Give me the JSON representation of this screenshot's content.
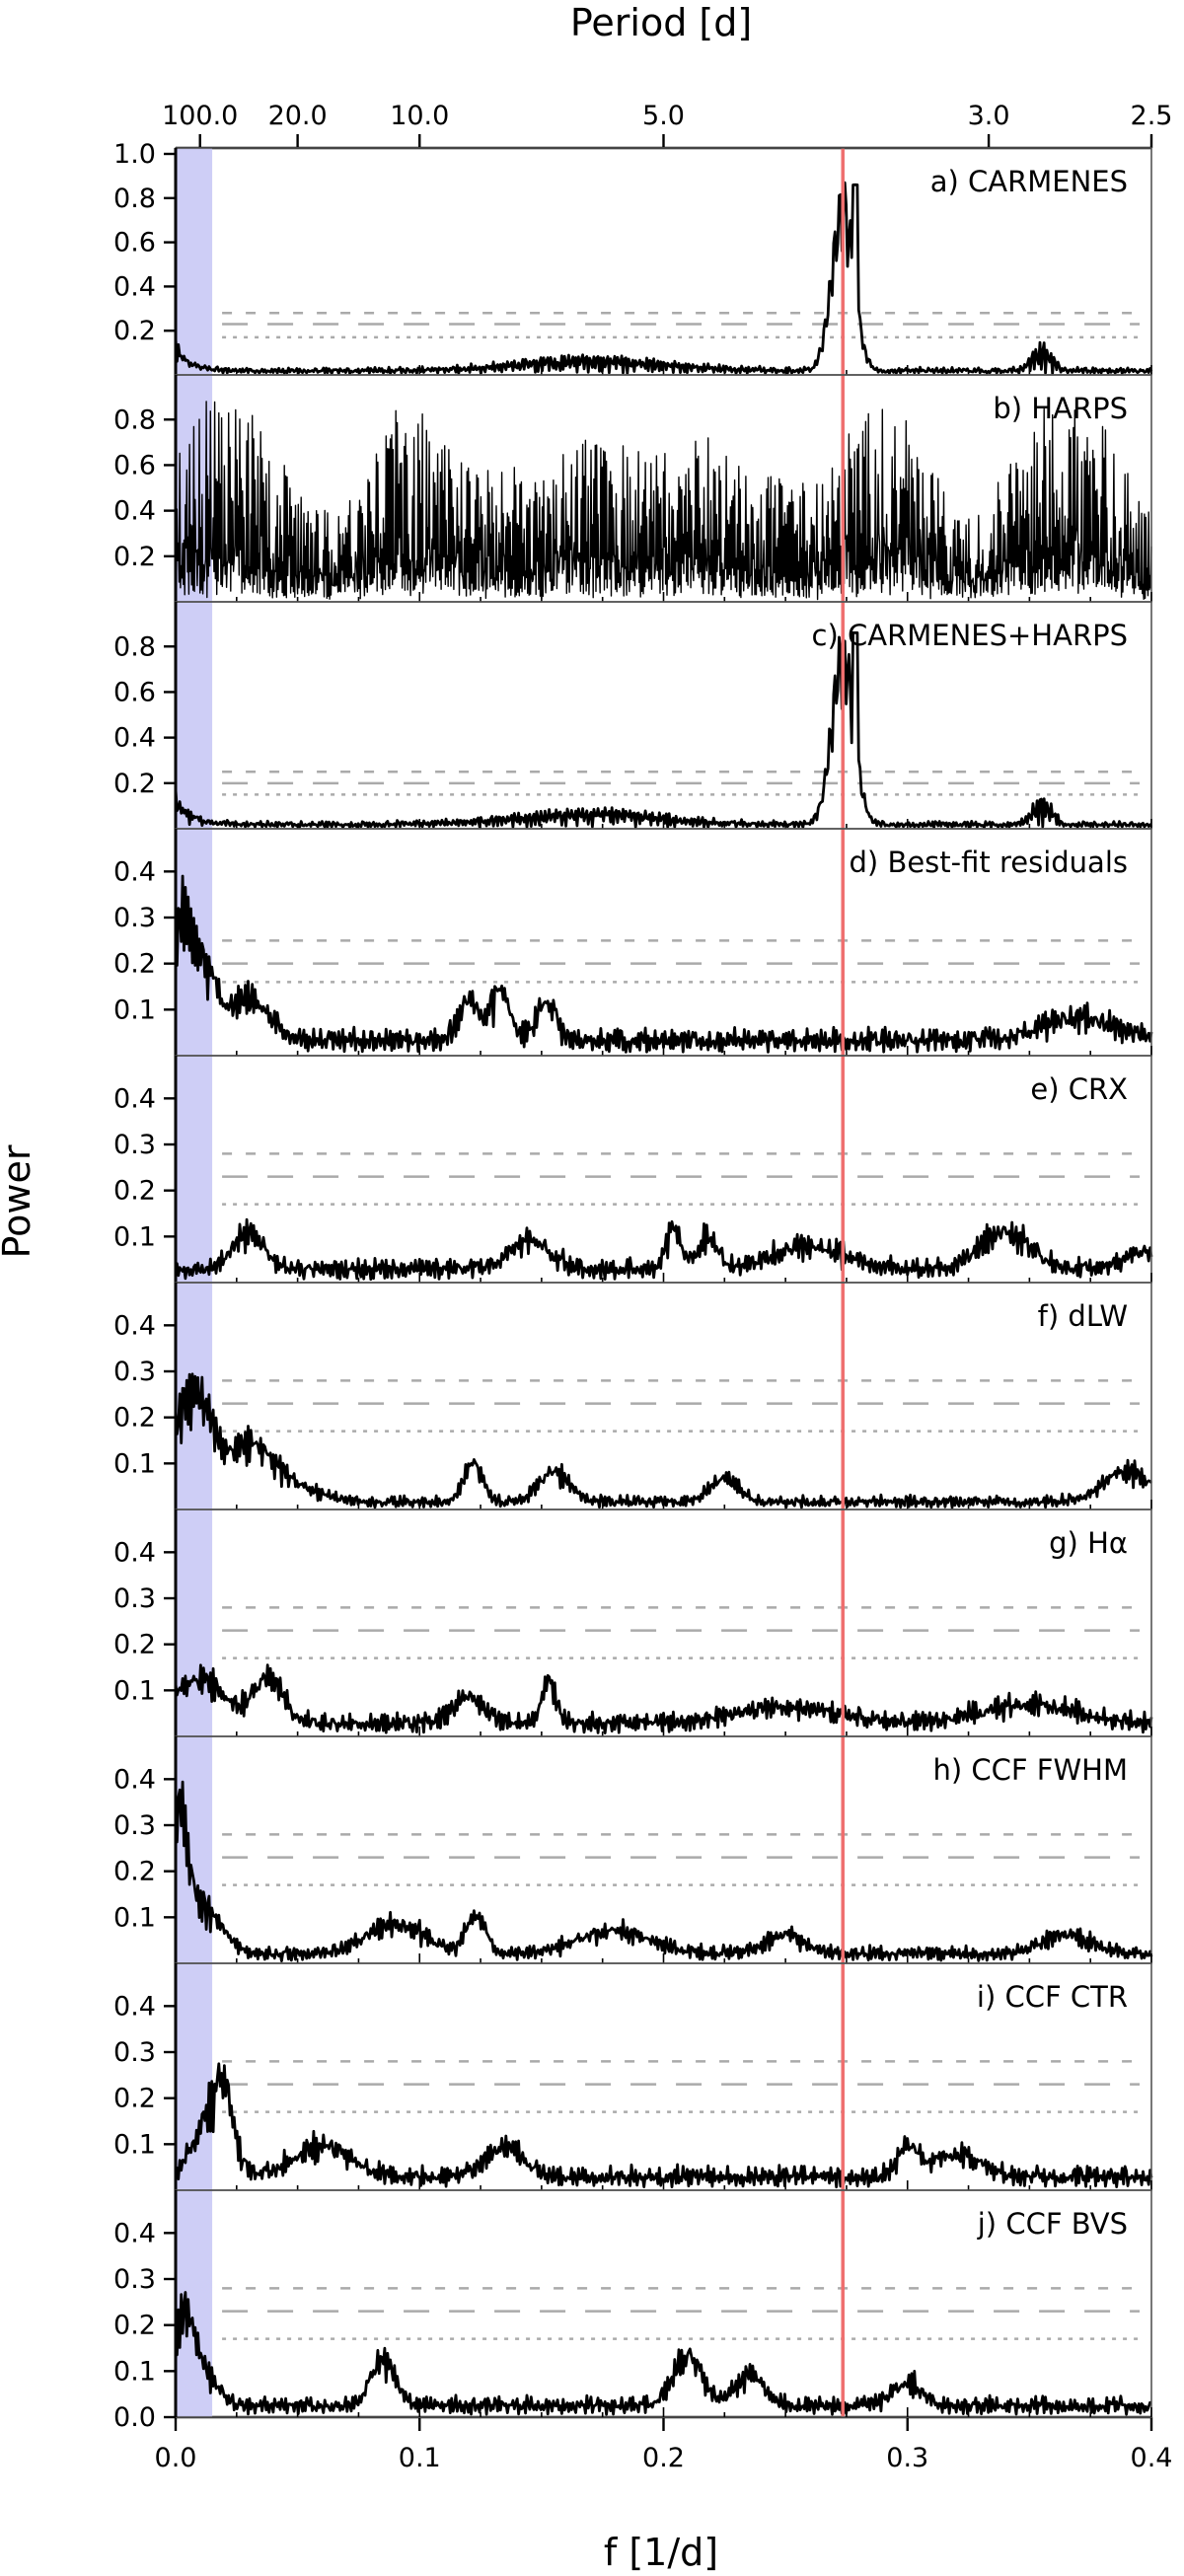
{
  "chart_data": {
    "type": "line",
    "title": "",
    "xlabel": "f [1/d]",
    "ylabel": "Power",
    "top_axis_label": "Period [d]",
    "xlim": [
      0.0,
      0.4
    ],
    "x_ticks": [
      0.0,
      0.1,
      0.2,
      0.3,
      0.4
    ],
    "x_tick_labels": [
      "0.0",
      "0.1",
      "0.2",
      "0.3",
      "0.4"
    ],
    "top_ticks": [
      {
        "label": "100.0",
        "freq": 0.01
      },
      {
        "label": "20.0",
        "freq": 0.05
      },
      {
        "label": "10.0",
        "freq": 0.1
      },
      {
        "label": "5.0",
        "freq": 0.2
      },
      {
        "label": "3.0",
        "freq": 0.3333
      },
      {
        "label": "2.5",
        "freq": 0.4
      }
    ],
    "shaded_band": {
      "from": 0.0,
      "to": 0.015,
      "color": "#c5c5f5"
    },
    "signal_line": {
      "freq": 0.2735,
      "color": "#ef6f6f"
    },
    "colors": {
      "curve": "#000000",
      "fap_lines": "#aaaaaa",
      "axis": "#000000"
    },
    "panels": [
      {
        "label": "a) CARMENES",
        "ylim": [
          0,
          1.0
        ],
        "yticks": [
          0.2,
          0.4,
          0.6,
          0.8,
          1.0
        ],
        "ytick_labels": [
          "0.2",
          "0.4",
          "0.6",
          "0.8",
          "1.0"
        ],
        "fap": [
          0.28,
          0.23,
          0.17
        ],
        "style": "carmenes",
        "noise": 0.02,
        "seed": 11
      },
      {
        "label": "b) HARPS",
        "ylim": [
          0,
          0.97
        ],
        "yticks": [
          0.2,
          0.4,
          0.6,
          0.8
        ],
        "ytick_labels": [
          "0.2",
          "0.4",
          "0.6",
          "0.8"
        ],
        "fap": [],
        "style": "harps",
        "seed": 23
      },
      {
        "label": "c) CARMENES+HARPS",
        "ylim": [
          0,
          0.97
        ],
        "yticks": [
          0.2,
          0.4,
          0.6,
          0.8
        ],
        "ytick_labels": [
          "0.2",
          "0.4",
          "0.6",
          "0.8"
        ],
        "fap": [
          0.25,
          0.2,
          0.15
        ],
        "style": "carmenes",
        "noise": 0.02,
        "seed": 37
      },
      {
        "label": "d) Best-fit residuals",
        "ylim": [
          0,
          0.48
        ],
        "yticks": [
          0.1,
          0.2,
          0.3,
          0.4
        ],
        "ytick_labels": [
          "0.1",
          "0.2",
          "0.3",
          "0.4"
        ],
        "fap": [
          0.25,
          0.2,
          0.16
        ],
        "style": "residuals",
        "noise": 0.04,
        "seed": 41,
        "bumps": [
          {
            "f": 0.003,
            "h": 0.31,
            "w": 0.004
          },
          {
            "f": 0.012,
            "h": 0.17,
            "w": 0.005
          },
          {
            "f": 0.03,
            "h": 0.11,
            "w": 0.008
          },
          {
            "f": 0.12,
            "h": 0.11,
            "w": 0.004
          },
          {
            "f": 0.133,
            "h": 0.13,
            "w": 0.004
          },
          {
            "f": 0.152,
            "h": 0.1,
            "w": 0.004
          },
          {
            "f": 0.37,
            "h": 0.06,
            "w": 0.015
          }
        ]
      },
      {
        "label": "e) CRX",
        "ylim": [
          0,
          0.48
        ],
        "yticks": [
          0.1,
          0.2,
          0.3,
          0.4
        ],
        "ytick_labels": [
          "0.1",
          "0.2",
          "0.3",
          "0.4"
        ],
        "fap": [
          0.28,
          0.23,
          0.17
        ],
        "style": "indicator",
        "noise": 0.035,
        "seed": 53,
        "bumps": [
          {
            "f": 0.03,
            "h": 0.1,
            "w": 0.006
          },
          {
            "f": 0.145,
            "h": 0.08,
            "w": 0.008
          },
          {
            "f": 0.204,
            "h": 0.11,
            "w": 0.003
          },
          {
            "f": 0.218,
            "h": 0.08,
            "w": 0.004
          },
          {
            "f": 0.26,
            "h": 0.06,
            "w": 0.015
          },
          {
            "f": 0.34,
            "h": 0.1,
            "w": 0.01
          },
          {
            "f": 0.395,
            "h": 0.05,
            "w": 0.006
          }
        ]
      },
      {
        "label": "f) dLW",
        "ylim": [
          0,
          0.48
        ],
        "yticks": [
          0.1,
          0.2,
          0.3,
          0.4
        ],
        "ytick_labels": [
          "0.1",
          "0.2",
          "0.3",
          "0.4"
        ],
        "fap": [
          0.28,
          0.23,
          0.17
        ],
        "style": "indicator",
        "noise": 0.02,
        "seed": 67,
        "bumps": [
          {
            "f": 0.003,
            "h": 0.2,
            "w": 0.006
          },
          {
            "f": 0.012,
            "h": 0.18,
            "w": 0.006
          },
          {
            "f": 0.03,
            "h": 0.13,
            "w": 0.008
          },
          {
            "f": 0.045,
            "h": 0.05,
            "w": 0.012
          },
          {
            "f": 0.122,
            "h": 0.1,
            "w": 0.004
          },
          {
            "f": 0.155,
            "h": 0.08,
            "w": 0.006
          },
          {
            "f": 0.225,
            "h": 0.06,
            "w": 0.006
          },
          {
            "f": 0.39,
            "h": 0.08,
            "w": 0.01
          }
        ]
      },
      {
        "label": "g) Hα",
        "ylim": [
          0,
          0.48
        ],
        "yticks": [
          0.1,
          0.2,
          0.3,
          0.4
        ],
        "ytick_labels": [
          "0.1",
          "0.2",
          "0.3",
          "0.4"
        ],
        "fap": [
          0.28,
          0.23,
          0.17
        ],
        "style": "indicator",
        "noise": 0.035,
        "seed": 71,
        "bumps": [
          {
            "f": 0.01,
            "h": 0.12,
            "w": 0.01
          },
          {
            "f": 0.038,
            "h": 0.12,
            "w": 0.006
          },
          {
            "f": 0.12,
            "h": 0.07,
            "w": 0.006
          },
          {
            "f": 0.153,
            "h": 0.11,
            "w": 0.003
          },
          {
            "f": 0.25,
            "h": 0.04,
            "w": 0.02
          },
          {
            "f": 0.35,
            "h": 0.05,
            "w": 0.02
          }
        ]
      },
      {
        "label": "h) CCF FWHM",
        "ylim": [
          0,
          0.48
        ],
        "yticks": [
          0.1,
          0.2,
          0.3,
          0.4
        ],
        "ytick_labels": [
          "0.1",
          "0.2",
          "0.3",
          "0.4"
        ],
        "fap": [
          0.28,
          0.23,
          0.17
        ],
        "style": "indicator",
        "noise": 0.025,
        "seed": 83,
        "bumps": [
          {
            "f": 0.002,
            "h": 0.3,
            "w": 0.003
          },
          {
            "f": 0.01,
            "h": 0.13,
            "w": 0.008
          },
          {
            "f": 0.09,
            "h": 0.08,
            "w": 0.012
          },
          {
            "f": 0.123,
            "h": 0.1,
            "w": 0.004
          },
          {
            "f": 0.18,
            "h": 0.06,
            "w": 0.015
          },
          {
            "f": 0.25,
            "h": 0.05,
            "w": 0.008
          },
          {
            "f": 0.365,
            "h": 0.05,
            "w": 0.01
          }
        ]
      },
      {
        "label": "i) CCF CTR",
        "ylim": [
          0,
          0.48
        ],
        "yticks": [
          0.1,
          0.2,
          0.3,
          0.4
        ],
        "ytick_labels": [
          "0.1",
          "0.2",
          "0.3",
          "0.4"
        ],
        "fap": [
          0.28,
          0.23,
          0.17
        ],
        "style": "indicator",
        "noise": 0.035,
        "seed": 97,
        "bumps": [
          {
            "f": 0.012,
            "h": 0.13,
            "w": 0.006
          },
          {
            "f": 0.02,
            "h": 0.2,
            "w": 0.004
          },
          {
            "f": 0.06,
            "h": 0.08,
            "w": 0.012
          },
          {
            "f": 0.135,
            "h": 0.08,
            "w": 0.008
          },
          {
            "f": 0.3,
            "h": 0.08,
            "w": 0.004
          },
          {
            "f": 0.32,
            "h": 0.06,
            "w": 0.01
          }
        ]
      },
      {
        "label": "j) CCF BVS",
        "ylim": [
          0,
          0.48
        ],
        "yticks": [
          0.0,
          0.1,
          0.2,
          0.3,
          0.4
        ],
        "ytick_labels": [
          "0.0",
          "0.1",
          "0.2",
          "0.3",
          "0.4"
        ],
        "fap": [
          0.28,
          0.23,
          0.17
        ],
        "style": "indicator",
        "noise": 0.03,
        "seed": 101,
        "bumps": [
          {
            "f": 0.003,
            "h": 0.2,
            "w": 0.004
          },
          {
            "f": 0.01,
            "h": 0.1,
            "w": 0.006
          },
          {
            "f": 0.085,
            "h": 0.12,
            "w": 0.005
          },
          {
            "f": 0.21,
            "h": 0.13,
            "w": 0.006
          },
          {
            "f": 0.235,
            "h": 0.08,
            "w": 0.006
          },
          {
            "f": 0.3,
            "h": 0.06,
            "w": 0.006
          }
        ]
      }
    ]
  }
}
